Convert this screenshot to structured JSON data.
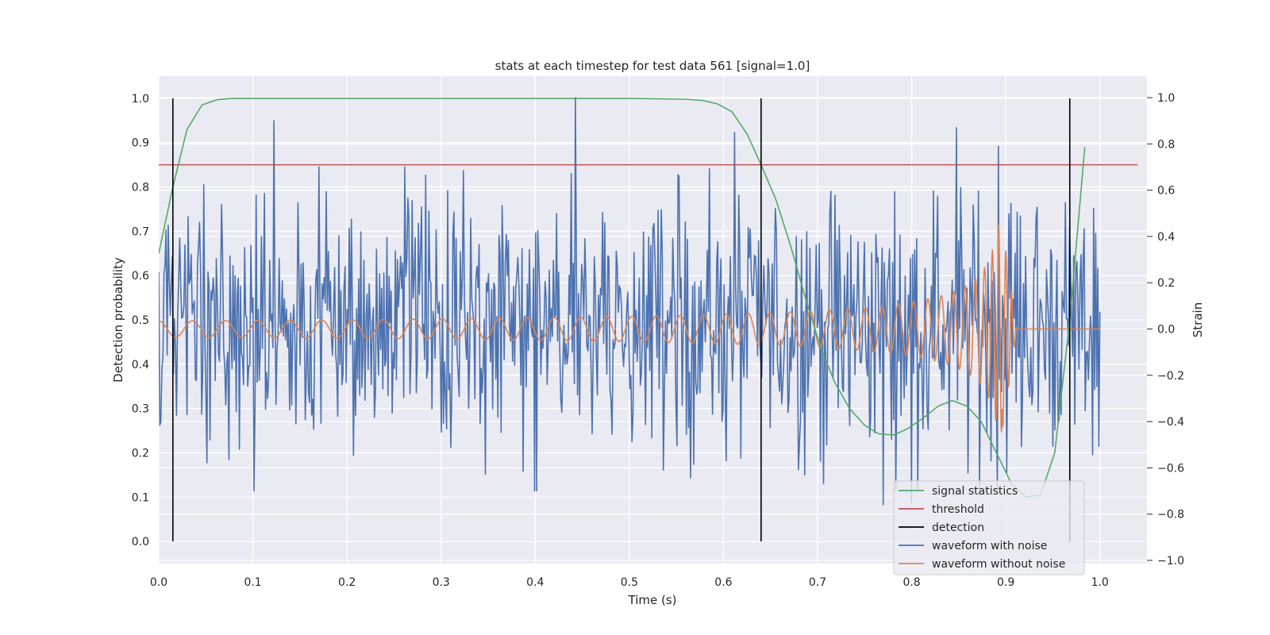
{
  "chart_data": {
    "type": "line",
    "title": "stats at each timestep for test data 561 [signal=1.0]",
    "xlabel": "Time (s)",
    "ylabel_left": "Detection probability",
    "ylabel_right": "Strain",
    "xlim": [
      0.0,
      1.05
    ],
    "ylim_left": [
      -0.05,
      1.05
    ],
    "ylim_right": [
      -1.0,
      1.0
    ],
    "x_ticks": [
      0.0,
      0.1,
      0.2,
      0.3,
      0.4,
      0.5,
      0.6,
      0.7,
      0.8,
      0.9,
      1.0
    ],
    "x_tick_labels": [
      "0.0",
      "0.1",
      "0.2",
      "0.3",
      "0.4",
      "0.5",
      "0.6",
      "0.7",
      "0.8",
      "0.9",
      "1.0"
    ],
    "y_left_ticks": [
      0.0,
      0.1,
      0.2,
      0.3,
      0.4,
      0.5,
      0.6,
      0.7,
      0.8,
      0.9,
      1.0
    ],
    "y_left_tick_labels": [
      "0.0",
      "0.1",
      "0.2",
      "0.3",
      "0.4",
      "0.5",
      "0.6",
      "0.7",
      "0.8",
      "0.9",
      "1.0"
    ],
    "y_right_ticks": [
      1.0,
      0.8,
      0.6,
      0.4,
      0.2,
      0.0,
      -0.2,
      -0.4,
      -0.6,
      -0.8,
      -1.0
    ],
    "y_right_tick_labels": [
      "1.0",
      "0.8",
      "0.6",
      "0.4",
      "0.2",
      "0.0",
      "−0.2",
      "−0.4",
      "−0.6",
      "−0.8",
      "−1.0"
    ],
    "grid": true,
    "legend_position": "bottom-right",
    "legend": [
      {
        "label": "signal statistics",
        "color": "#55a868"
      },
      {
        "label": "threshold",
        "color": "#c44e52"
      },
      {
        "label": "detection",
        "color": "#000000"
      },
      {
        "label": "waveform with noise",
        "color": "#4c72b0"
      },
      {
        "label": "waveform without noise",
        "color": "#dd8452"
      }
    ],
    "series": [
      {
        "name": "signal statistics",
        "axis": "left",
        "color": "#55a868",
        "x": [
          0.0,
          0.015,
          0.03,
          0.046,
          0.062,
          0.078,
          0.1,
          0.2,
          0.3,
          0.4,
          0.5,
          0.56,
          0.578,
          0.593,
          0.609,
          0.625,
          0.64,
          0.656,
          0.671,
          0.687,
          0.703,
          0.718,
          0.734,
          0.75,
          0.765,
          0.781,
          0.796,
          0.812,
          0.828,
          0.843,
          0.859,
          0.874,
          0.89,
          0.906,
          0.921,
          0.937,
          0.952,
          0.968,
          0.984
        ],
        "y": [
          0.65,
          0.8,
          0.93,
          0.985,
          0.997,
          1.0,
          1.0,
          1.0,
          1.0,
          1.0,
          1.0,
          0.998,
          0.995,
          0.988,
          0.97,
          0.92,
          0.85,
          0.77,
          0.67,
          0.55,
          0.44,
          0.36,
          0.3,
          0.262,
          0.243,
          0.24,
          0.255,
          0.278,
          0.305,
          0.318,
          0.305,
          0.27,
          0.2,
          0.13,
          0.1,
          0.105,
          0.2,
          0.5,
          0.89
        ]
      },
      {
        "name": "threshold",
        "axis": "left",
        "color": "#c44e52",
        "x": [
          0.0,
          1.04
        ],
        "y": [
          0.85,
          0.85
        ]
      },
      {
        "name": "waveform with noise",
        "axis": "right",
        "color": "#4c72b0",
        "x_start": 0.0,
        "x_end": 1.0,
        "n_points": 900,
        "mean": 0.0,
        "typical_range": [
          -0.5,
          0.6
        ],
        "peaks": [
          {
            "x": 0.122,
            "y": 0.9
          },
          {
            "x": 0.443,
            "y": 1.0
          },
          {
            "x": 0.612,
            "y": 0.85
          },
          {
            "x": 0.848,
            "y": 0.87
          },
          {
            "x": 0.892,
            "y": 0.79
          }
        ],
        "troughs": [
          {
            "x": 0.402,
            "y": -0.7
          },
          {
            "x": 0.77,
            "y": -0.76
          },
          {
            "x": 0.8,
            "y": -0.75
          }
        ]
      },
      {
        "name": "waveform without noise",
        "axis": "right",
        "color": "#dd8452",
        "type": "chirp",
        "x_start": 0.0,
        "merger_time": 0.9,
        "x_end": 1.0,
        "amplitude_start": 0.035,
        "amplitude_peak": 0.45,
        "post_merger_value": 0.0,
        "cycles": 40
      }
    ],
    "detections": [
      0.015,
      0.64,
      0.968
    ],
    "detection_ylim": [
      0.0,
      1.0
    ]
  }
}
